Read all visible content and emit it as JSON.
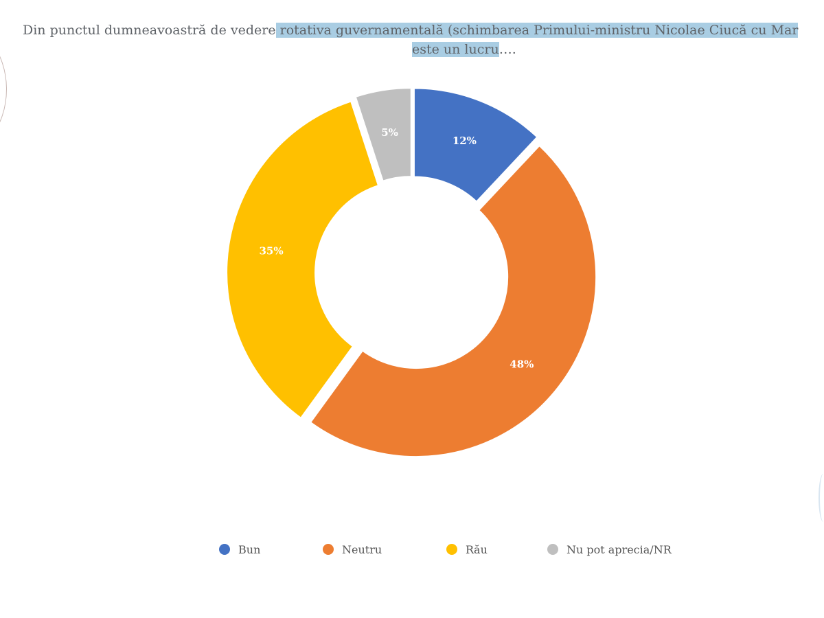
{
  "chart_data": {
    "type": "pie",
    "donut": true,
    "title_line1_plain": "Din punctul dumneavoastră de vedere",
    "title_line1_highlight": " rotativa guvernamentală (schimbarea Primului-ministru Nicolae Ciucă cu Mar",
    "title_line2_highlight": "este un lucru",
    "title_line2_plain": "….",
    "categories": [
      "Bun",
      "Neutru",
      "Rău",
      "Nu pot aprecia/NR"
    ],
    "values": [
      12,
      48,
      35,
      5
    ],
    "labels": [
      "12%",
      "48%",
      "35%",
      "5%"
    ],
    "colors": [
      "#4472c4",
      "#ed7d31",
      "#ffc000",
      "#bfbfbf"
    ],
    "legend_position": "bottom"
  }
}
